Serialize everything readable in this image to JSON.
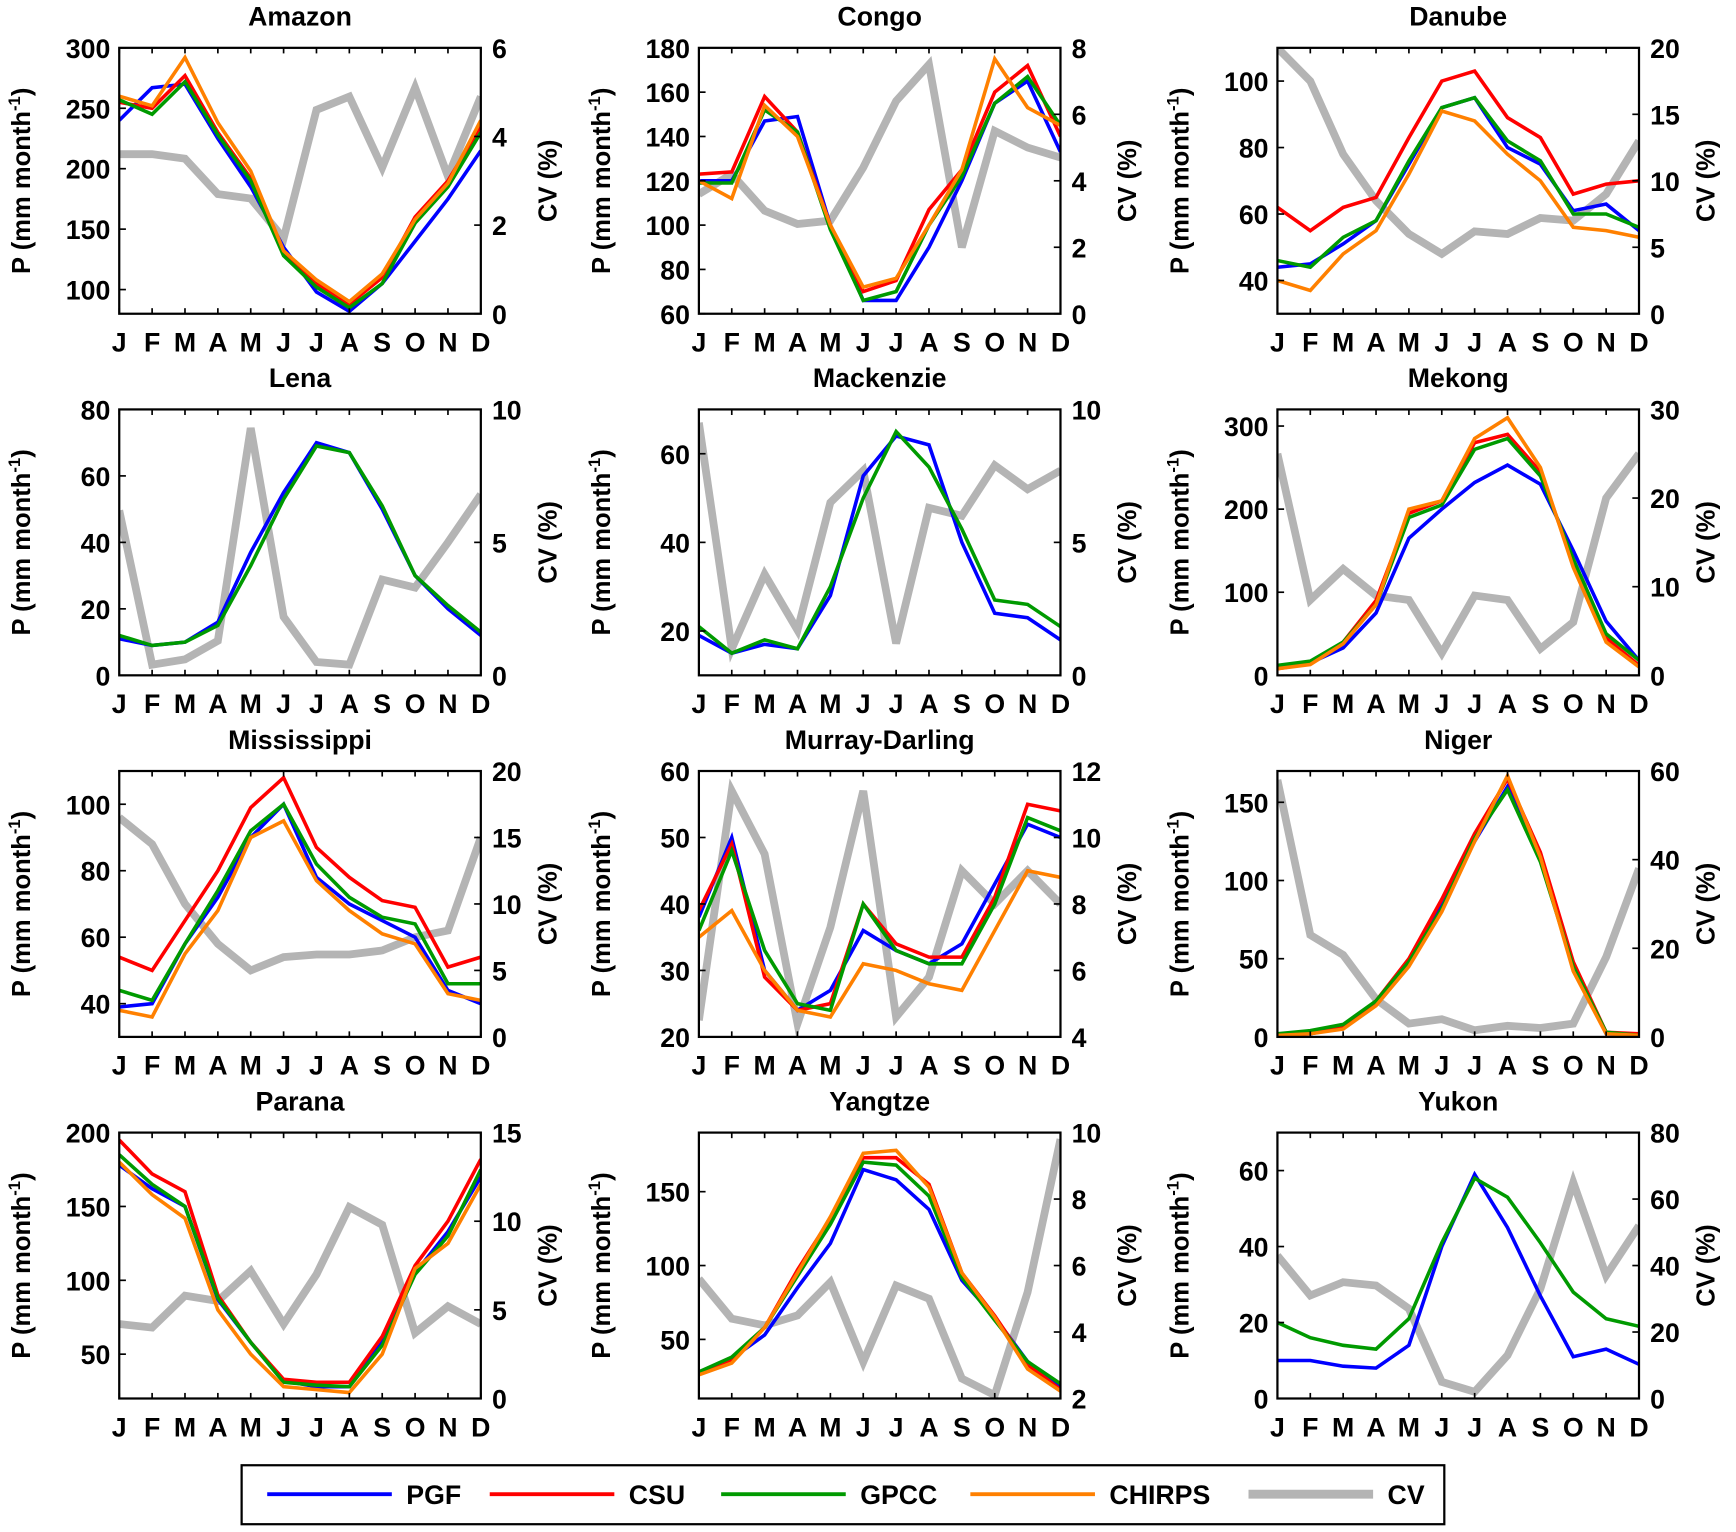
{
  "chart_data": {
    "type": "line",
    "months": [
      "J",
      "F",
      "M",
      "A",
      "M",
      "J",
      "J",
      "A",
      "S",
      "O",
      "N",
      "D"
    ],
    "ylabel": "P (mm month",
    "ylabel_sup": "-1",
    "ylabel_end": ")",
    "y2label": "CV (%)",
    "legend": [
      {
        "key": "PGF",
        "label": "PGF",
        "color": "#0000ff"
      },
      {
        "key": "CSU",
        "label": "CSU",
        "color": "#ff0000"
      },
      {
        "key": "GPCC",
        "label": "GPCC",
        "color": "#009a00"
      },
      {
        "key": "CHIRPS",
        "label": "CHIRPS",
        "color": "#ff8000"
      },
      {
        "key": "CV",
        "label": "CV",
        "color": "#b4b4b4"
      }
    ],
    "legend_position": "bottom-center",
    "panels": [
      {
        "title": "Amazon",
        "ylim": [
          80,
          300
        ],
        "yticks": [
          100,
          150,
          200,
          250,
          300
        ],
        "y2lim": [
          0,
          6
        ],
        "y2ticks": [
          0,
          2,
          4,
          6
        ],
        "series": {
          "PGF": [
            240,
            267,
            270,
            225,
            185,
            135,
            98,
            82,
            105,
            140,
            175,
            215
          ],
          "CSU": [
            255,
            250,
            277,
            230,
            192,
            130,
            105,
            88,
            110,
            160,
            190,
            235
          ],
          "GPCC": [
            257,
            245,
            272,
            228,
            190,
            128,
            102,
            85,
            105,
            155,
            185,
            230
          ],
          "CHIRPS": [
            260,
            252,
            292,
            238,
            198,
            132,
            108,
            90,
            113,
            158,
            188,
            240
          ],
          "CV": [
            3.6,
            3.6,
            3.5,
            2.7,
            2.6,
            1.7,
            4.6,
            4.9,
            3.3,
            5.1,
            3.1,
            4.9
          ]
        }
      },
      {
        "title": "Congo",
        "ylim": [
          60,
          180
        ],
        "yticks": [
          60,
          80,
          100,
          120,
          140,
          160,
          180
        ],
        "y2lim": [
          0,
          8
        ],
        "y2ticks": [
          0,
          2,
          4,
          6,
          8
        ],
        "series": {
          "PGF": [
            120,
            120,
            147,
            149,
            100,
            66,
            66,
            90,
            120,
            155,
            165,
            133
          ],
          "CSU": [
            123,
            124,
            158,
            142,
            100,
            70,
            75,
            107,
            125,
            160,
            172,
            140
          ],
          "GPCC": [
            119,
            119,
            152,
            142,
            98,
            66,
            70,
            100,
            122,
            155,
            167,
            145
          ],
          "CHIRPS": [
            120,
            112,
            154,
            140,
            100,
            72,
            76,
            100,
            125,
            175,
            153,
            145
          ],
          "CV": [
            3.6,
            4.2,
            3.1,
            2.7,
            2.8,
            4.4,
            6.4,
            7.5,
            2.0,
            5.5,
            5.0,
            4.7
          ]
        }
      },
      {
        "title": "Danube",
        "ylim": [
          30,
          110
        ],
        "yticks": [
          40,
          60,
          80,
          100
        ],
        "y2lim": [
          0,
          20
        ],
        "y2ticks": [
          0,
          5,
          10,
          15,
          20
        ],
        "series": {
          "PGF": [
            44,
            45,
            51,
            58,
            75,
            92,
            95,
            80,
            75,
            61,
            63,
            55
          ],
          "CSU": [
            62,
            55,
            62,
            65,
            83,
            100,
            103,
            89,
            83,
            66,
            69,
            70
          ],
          "GPCC": [
            46,
            44,
            53,
            58,
            76,
            92,
            95,
            82,
            76,
            60,
            60,
            56
          ],
          "CHIRPS": [
            40,
            37,
            48,
            55,
            72,
            91,
            88,
            78,
            70,
            56,
            55,
            53
          ],
          "CV": [
            20,
            17.5,
            12,
            8.5,
            6,
            4.5,
            6.2,
            6,
            7.2,
            7,
            9,
            13
          ]
        }
      },
      {
        "title": "Lena",
        "ylim": [
          0,
          80
        ],
        "yticks": [
          0,
          20,
          40,
          60,
          80
        ],
        "y2lim": [
          0,
          10
        ],
        "y2ticks": [
          0,
          5,
          10
        ],
        "series": {
          "PGF": [
            11,
            9,
            10,
            16,
            37,
            55,
            70,
            67,
            50,
            30,
            20,
            12
          ],
          "GPCC": [
            12,
            9,
            10,
            15,
            33,
            53,
            69,
            67,
            51,
            30,
            21,
            13
          ],
          "CV": [
            6.2,
            0.4,
            0.6,
            1.3,
            9.3,
            2.2,
            0.5,
            0.4,
            3.6,
            3.3,
            5,
            6.8
          ]
        }
      },
      {
        "title": "Mackenzie",
        "ylim": [
          10,
          70
        ],
        "yticks": [
          20,
          40,
          60
        ],
        "y2lim": [
          0,
          10
        ],
        "y2ticks": [
          0,
          5,
          10
        ],
        "series": {
          "PGF": [
            19,
            15,
            17,
            16,
            28,
            55,
            64,
            62,
            40,
            24,
            23,
            18
          ],
          "GPCC": [
            21,
            15,
            18,
            16,
            30,
            50,
            65,
            57,
            43,
            27,
            26,
            21
          ],
          "CV": [
            9.5,
            1,
            3.8,
            1.7,
            6.5,
            7.7,
            1.2,
            6.3,
            6,
            7.9,
            7,
            7.7
          ]
        }
      },
      {
        "title": "Mekong",
        "ylim": [
          0,
          320
        ],
        "yticks": [
          0,
          100,
          200,
          300
        ],
        "y2lim": [
          0,
          30
        ],
        "y2ticks": [
          0,
          10,
          20,
          30
        ],
        "series": {
          "PGF": [
            10,
            15,
            33,
            75,
            165,
            200,
            232,
            253,
            230,
            150,
            65,
            18
          ],
          "CSU": [
            8,
            14,
            40,
            90,
            195,
            210,
            280,
            290,
            245,
            135,
            45,
            12
          ],
          "GPCC": [
            12,
            17,
            40,
            85,
            190,
            205,
            272,
            285,
            240,
            140,
            50,
            18
          ],
          "CHIRPS": [
            8,
            13,
            38,
            85,
            200,
            210,
            285,
            310,
            250,
            130,
            40,
            10
          ],
          "CV": [
            25,
            8.5,
            12,
            9,
            8.5,
            2.5,
            9,
            8.5,
            3,
            6,
            20,
            25
          ]
        }
      },
      {
        "title": "Mississippi",
        "ylim": [
          30,
          110
        ],
        "yticks": [
          40,
          60,
          80,
          100
        ],
        "y2lim": [
          0,
          20
        ],
        "y2ticks": [
          0,
          5,
          10,
          15,
          20
        ],
        "series": {
          "PGF": [
            39,
            40,
            58,
            72,
            90,
            100,
            78,
            70,
            65,
            60,
            44,
            40
          ],
          "CSU": [
            54,
            50,
            65,
            80,
            99,
            108,
            87,
            78,
            71,
            69,
            51,
            54
          ],
          "GPCC": [
            44,
            41,
            58,
            74,
            92,
            100,
            82,
            72,
            66,
            64,
            46,
            46
          ],
          "CHIRPS": [
            38,
            36,
            55,
            68,
            90,
            95,
            77,
            68,
            61,
            58,
            43,
            41
          ],
          "CV": [
            16.5,
            14.5,
            10,
            7,
            5,
            6,
            6.2,
            6.2,
            6.5,
            7.5,
            8,
            15
          ]
        }
      },
      {
        "title": "Murray-Darling",
        "ylim": [
          20,
          60
        ],
        "yticks": [
          20,
          30,
          40,
          50,
          60
        ],
        "y2lim": [
          4,
          12
        ],
        "y2ticks": [
          4,
          6,
          8,
          10,
          12
        ],
        "series": {
          "PGF": [
            38,
            50,
            30,
            24,
            27,
            36,
            33,
            31,
            34,
            43,
            52,
            50
          ],
          "CSU": [
            39,
            49,
            29,
            24,
            25,
            40,
            34,
            32,
            32,
            41,
            55,
            54
          ],
          "GPCC": [
            36,
            48,
            33,
            25,
            24,
            40,
            33,
            31,
            31,
            40,
            53,
            51
          ],
          "CHIRPS": [
            35,
            39,
            30,
            24,
            23,
            31,
            30,
            28,
            27,
            36,
            45,
            44
          ],
          "CV": [
            4.5,
            11.4,
            9.5,
            4.4,
            7.3,
            11.4,
            4.6,
            5.8,
            9,
            8,
            9,
            8
          ]
        }
      },
      {
        "title": "Niger",
        "ylim": [
          0,
          170
        ],
        "yticks": [
          0,
          50,
          100,
          150
        ],
        "y2lim": [
          0,
          60
        ],
        "y2ticks": [
          0,
          20,
          40,
          60
        ],
        "series": {
          "PGF": [
            1,
            2,
            6,
            22,
            48,
            85,
            125,
            160,
            115,
            45,
            2,
            1
          ],
          "CSU": [
            1,
            2,
            6,
            23,
            50,
            88,
            130,
            165,
            118,
            48,
            3,
            2
          ],
          "GPCC": [
            2,
            4,
            8,
            23,
            48,
            82,
            127,
            158,
            112,
            45,
            3,
            1
          ],
          "CHIRPS": [
            1,
            2,
            5,
            20,
            45,
            80,
            125,
            167,
            115,
            42,
            2,
            1
          ],
          "CV": [
            58,
            23,
            18.5,
            8.5,
            3,
            4,
            1.5,
            2.5,
            2,
            3,
            18,
            38
          ]
        }
      },
      {
        "title": "Parana",
        "ylim": [
          20,
          200
        ],
        "yticks": [
          50,
          100,
          150,
          200
        ],
        "y2lim": [
          0,
          15
        ],
        "y2ticks": [
          0,
          5,
          10,
          15
        ],
        "series": {
          "PGF": [
            178,
            162,
            150,
            87,
            58,
            32,
            28,
            28,
            58,
            105,
            133,
            170
          ],
          "CSU": [
            195,
            172,
            160,
            90,
            58,
            33,
            31,
            31,
            62,
            110,
            140,
            182
          ],
          "GPCC": [
            185,
            165,
            150,
            88,
            58,
            31,
            29,
            28,
            56,
            104,
            130,
            175
          ],
          "CHIRPS": [
            180,
            158,
            142,
            80,
            50,
            28,
            26,
            24,
            50,
            108,
            125,
            165
          ],
          "CV": [
            4.2,
            4,
            5.8,
            5.5,
            7.2,
            4.2,
            7,
            10.8,
            9.8,
            3.7,
            5.2,
            4.2
          ]
        }
      },
      {
        "title": "Yangtze",
        "ylim": [
          10,
          190
        ],
        "yticks": [
          50,
          100,
          150
        ],
        "y2lim": [
          2,
          10
        ],
        "y2ticks": [
          2,
          4,
          6,
          8,
          10
        ],
        "series": {
          "PGF": [
            28,
            37,
            53,
            85,
            115,
            165,
            158,
            138,
            90,
            65,
            35,
            18
          ],
          "CSU": [
            27,
            36,
            58,
            97,
            132,
            173,
            173,
            155,
            95,
            66,
            33,
            16
          ],
          "GPCC": [
            28,
            38,
            58,
            93,
            128,
            170,
            168,
            147,
            92,
            63,
            35,
            20
          ],
          "CHIRPS": [
            26,
            34,
            58,
            95,
            133,
            176,
            178,
            153,
            95,
            65,
            30,
            15
          ],
          "CV": [
            5.6,
            4.4,
            4.2,
            4.5,
            5.5,
            3.1,
            5.4,
            5,
            2.6,
            2.1,
            5.2,
            9.8
          ]
        }
      },
      {
        "title": "Yukon",
        "ylim": [
          0,
          70
        ],
        "yticks": [
          0,
          20,
          40,
          60
        ],
        "y2lim": [
          0,
          80
        ],
        "y2ticks": [
          0,
          20,
          40,
          60,
          80
        ],
        "series": {
          "PGF": [
            10,
            10,
            8.5,
            8,
            14,
            40,
            59,
            45,
            27,
            11,
            13,
            9
          ],
          "GPCC": [
            20,
            16,
            14,
            13,
            21,
            41,
            58,
            53,
            41,
            28,
            21,
            19
          ],
          "CV": [
            43,
            31,
            35,
            34,
            27,
            5,
            2,
            13,
            33,
            65,
            37,
            52
          ]
        }
      }
    ]
  }
}
